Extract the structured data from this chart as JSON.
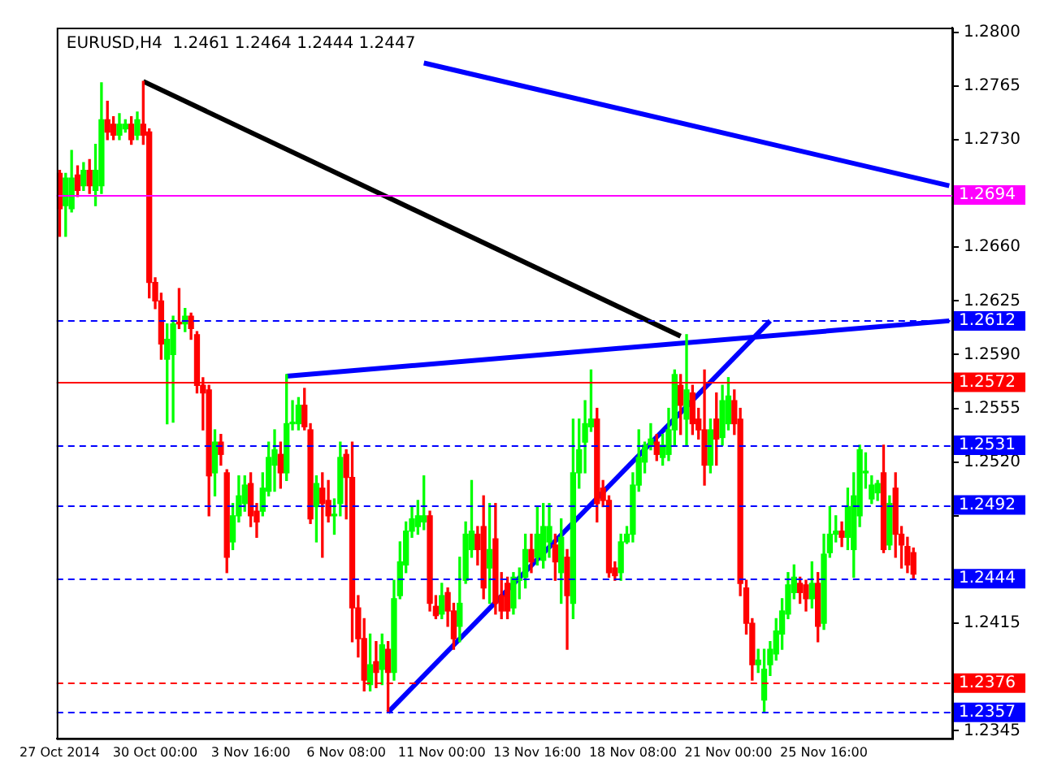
{
  "chart_data": {
    "type": "candlestick",
    "title": "EURUSD,H4  1.2461 1.2464 1.2444 1.2447",
    "categories": [
      "27 Oct 2014",
      null,
      null,
      null,
      null,
      null,
      null,
      null,
      null,
      null,
      null,
      null,
      null,
      null,
      null,
      null,
      "30 Oct 00:00",
      null,
      null,
      null,
      null,
      null,
      null,
      null,
      null,
      null,
      null,
      null,
      null,
      null,
      null,
      null,
      "3 Nov 16:00",
      null,
      null,
      null,
      null,
      null,
      null,
      null,
      null,
      null,
      null,
      null,
      null,
      null,
      null,
      null,
      "6 Nov 08:00",
      null,
      null,
      null,
      null,
      null,
      null,
      null,
      null,
      null,
      null,
      null,
      null,
      null,
      null,
      null,
      "11 Nov 00:00",
      null,
      null,
      null,
      null,
      null,
      null,
      null,
      null,
      null,
      null,
      null,
      null,
      null,
      null,
      null,
      "13 Nov 16:00",
      null,
      null,
      null,
      null,
      null,
      null,
      null,
      null,
      null,
      null,
      null,
      null,
      null,
      null,
      null,
      "18 Nov 08:00",
      null,
      null,
      null,
      null,
      null,
      null,
      null,
      null,
      null,
      null,
      null,
      null,
      null,
      null,
      null,
      "21 Nov 00:00",
      null,
      null,
      null,
      null,
      null,
      null,
      null,
      null,
      null,
      null,
      null,
      null,
      null,
      null,
      null,
      "25 Nov 16:00",
      null,
      null,
      null,
      null,
      null,
      null,
      null,
      null,
      null,
      null,
      null,
      null,
      null,
      null,
      null,
      null,
      null,
      null,
      null,
      null,
      null
    ],
    "colors": [
      "#ff0000",
      "#00ff00",
      "#00ff00",
      "#ff0000",
      "#00ff00",
      "#ff0000",
      "#00ff00",
      "#00ff00",
      "#ff0000",
      "#ff0000",
      "#00ff00",
      "#00ff00",
      "#ff0000",
      "#00ff00",
      "#ff0000",
      "#ff0000",
      "#ff0000",
      "#ff0000",
      "#00ff00",
      "#00ff00",
      "#ff0000",
      "#00ff00",
      "#ff0000",
      "#ff0000",
      "#ff0000",
      "#ff0000",
      "#00ff00",
      "#ff0000",
      "#ff0000",
      "#00ff00",
      "#00ff00",
      "#00ff00",
      "#ff0000",
      "#ff0000",
      "#00ff00",
      "#00ff00",
      "#00ff00",
      "#ff0000",
      "#00ff00",
      "#00ff00",
      "#00ff00",
      "#ff0000",
      "#ff0000",
      "#00ff00",
      "#ff0000",
      "#ff0000",
      "#00ff00",
      "#00ff00",
      "#ff0000",
      "#ff0000",
      "#ff0000",
      "#ff0000",
      "#00ff00",
      "#ff0000",
      "#00ff00",
      "#ff0000",
      "#00ff00",
      "#00ff00",
      "#00ff00",
      "#00ff00",
      "#00ff00",
      "#00ff00",
      "#ff0000",
      "#ff0000",
      "#00ff00",
      "#ff0000",
      "#ff0000",
      "#00ff00",
      "#00ff00",
      "#00ff00",
      "#ff0000",
      "#ff0000",
      "#00ff00",
      "#ff0000",
      "#ff0000",
      "#ff0000",
      "#00ff00",
      "#00ff00",
      "#00ff00",
      "#ff0000",
      "#00ff00",
      "#00ff00",
      "#00ff00",
      "#ff0000",
      "#00ff00",
      "#ff0000",
      "#00ff00",
      "#00ff00",
      "#00ff00",
      "#00ff00",
      "#ff0000",
      "#ff0000",
      "#ff0000",
      "#ff0000",
      "#00ff00",
      "#00ff00",
      "#00ff00",
      "#00ff00",
      "#00ff00",
      "#00ff00",
      "#ff0000",
      "#00ff00",
      "#00ff00",
      "#00ff00",
      "#ff0000",
      "#00ff00",
      "#ff0000",
      "#ff0000",
      "#ff0000",
      "#00ff00",
      "#ff0000",
      "#00ff00",
      "#00ff00",
      "#ff0000",
      "#ff0000",
      "#ff0000",
      "#ff0000",
      "#00ff00",
      "#00ff00",
      "#00ff00",
      "#00ff00",
      "#00ff00",
      "#00ff00",
      "#00ff00",
      "#ff0000",
      "#ff0000",
      "#00ff00",
      "#ff0000",
      "#00ff00",
      "#00ff00",
      "#00ff00",
      "#ff0000",
      "#00ff00",
      "#00ff00",
      "#00ff00",
      "#00ff00",
      "#00ff00",
      "#00ff00",
      "#ff0000",
      "#00ff00",
      "#ff0000",
      "#ff0000",
      "#ff0000",
      "#ff0000",
      null,
      null,
      null,
      null,
      null,
      null
    ],
    "ohlc": [
      [
        1.2708,
        1.271,
        1.2667,
        1.2685
      ],
      [
        1.2687,
        1.2708,
        1.2667,
        1.2705
      ],
      [
        1.2685,
        1.2723,
        1.2683,
        1.2705
      ],
      [
        1.2707,
        1.2713,
        1.2693,
        1.2697
      ],
      [
        1.27,
        1.2715,
        1.2697,
        1.271
      ],
      [
        1.271,
        1.2717,
        1.2695,
        1.27
      ],
      [
        1.2697,
        1.2727,
        1.2687,
        1.271
      ],
      [
        1.27,
        1.2767,
        1.2695,
        1.2743
      ],
      [
        1.2743,
        1.2755,
        1.273,
        1.2735
      ],
      [
        1.274,
        1.2745,
        1.273,
        1.2733
      ],
      [
        1.2733,
        1.2747,
        1.273,
        1.274
      ],
      [
        1.2737,
        1.2743,
        1.2735,
        1.274
      ],
      [
        1.274,
        1.2745,
        1.2727,
        1.273
      ],
      [
        1.2733,
        1.2748,
        1.273,
        1.2743
      ],
      [
        1.274,
        1.2768,
        1.2727,
        1.2733
      ],
      [
        1.2735,
        1.2737,
        1.2627,
        1.2637
      ],
      [
        1.2637,
        1.264,
        1.262,
        1.2625
      ],
      [
        1.2625,
        1.263,
        1.2587,
        1.2597
      ],
      [
        1.2587,
        1.261,
        1.2545,
        1.26
      ],
      [
        1.259,
        1.2615,
        1.2546,
        1.261
      ],
      [
        1.2611,
        1.2633,
        1.2607,
        1.261
      ],
      [
        1.261,
        1.262,
        1.2605,
        1.2615
      ],
      [
        1.2615,
        1.2617,
        1.26,
        1.2607
      ],
      [
        1.2603,
        1.2605,
        1.2565,
        1.257
      ],
      [
        1.257,
        1.2575,
        1.2541,
        1.2565
      ],
      [
        1.2567,
        1.257,
        1.2485,
        1.2511
      ],
      [
        1.2513,
        1.2541,
        1.2498,
        1.2533
      ],
      [
        1.2533,
        1.2538,
        1.2518,
        1.2525
      ],
      [
        1.2513,
        1.2515,
        1.2448,
        1.2458
      ],
      [
        1.2468,
        1.2493,
        1.2463,
        1.2485
      ],
      [
        1.2485,
        1.2511,
        1.2481,
        1.2498
      ],
      [
        1.2493,
        1.2511,
        1.2488,
        1.2505
      ],
      [
        1.2506,
        1.2513,
        1.2478,
        1.2485
      ],
      [
        1.2488,
        1.2493,
        1.2471,
        1.2481
      ],
      [
        1.2488,
        1.2513,
        1.2485,
        1.2503
      ],
      [
        1.2501,
        1.2533,
        1.2498,
        1.2523
      ],
      [
        1.2518,
        1.2541,
        1.2501,
        1.2528
      ],
      [
        1.2525,
        1.2533,
        1.2503,
        1.2513
      ],
      [
        1.2513,
        1.2577,
        1.2508,
        1.2545
      ],
      [
        1.2545,
        1.256,
        1.2541,
        1.2546
      ],
      [
        1.2545,
        1.2562,
        1.2541,
        1.2557
      ],
      [
        1.2557,
        1.2568,
        1.2541,
        1.2543
      ],
      [
        1.2541,
        1.2545,
        1.248,
        1.2483
      ],
      [
        1.2491,
        1.2511,
        1.2468,
        1.2506
      ],
      [
        1.2503,
        1.2513,
        1.2458,
        1.2493
      ],
      [
        1.2495,
        1.2508,
        1.2481,
        1.2485
      ],
      [
        1.2485,
        1.2496,
        1.2473,
        1.2486
      ],
      [
        1.2493,
        1.2533,
        1.2485,
        1.2523
      ],
      [
        1.2525,
        1.2528,
        1.2483,
        1.251
      ],
      [
        1.251,
        1.2533,
        1.2403,
        1.2425
      ],
      [
        1.2425,
        1.2433,
        1.2393,
        1.2405
      ],
      [
        1.2405,
        1.2418,
        1.2371,
        1.2378
      ],
      [
        1.2375,
        1.2408,
        1.2371,
        1.2388
      ],
      [
        1.239,
        1.2403,
        1.2373,
        1.2383
      ],
      [
        1.2385,
        1.2408,
        1.2375,
        1.2401
      ],
      [
        1.2398,
        1.2403,
        1.2357,
        1.2383
      ],
      [
        1.2383,
        1.2443,
        1.2378,
        1.2431
      ],
      [
        1.2433,
        1.2468,
        1.2431,
        1.2455
      ],
      [
        1.2453,
        1.2481,
        1.2448,
        1.2475
      ],
      [
        1.2475,
        1.2491,
        1.2471,
        1.2483
      ],
      [
        1.2478,
        1.2495,
        1.2473,
        1.2485
      ],
      [
        1.2481,
        1.2511,
        1.2476,
        1.2485
      ],
      [
        1.2485,
        1.2488,
        1.2423,
        1.2428
      ],
      [
        1.2426,
        1.2433,
        1.2418,
        1.242
      ],
      [
        1.2421,
        1.2441,
        1.2418,
        1.2433
      ],
      [
        1.2435,
        1.2438,
        1.2413,
        1.2423
      ],
      [
        1.2423,
        1.2428,
        1.2398,
        1.2405
      ],
      [
        1.2413,
        1.2458,
        1.2403,
        1.2428
      ],
      [
        1.2443,
        1.2481,
        1.2441,
        1.2473
      ],
      [
        1.2463,
        1.2508,
        1.2458,
        1.2475
      ],
      [
        1.2473,
        1.2478,
        1.2453,
        1.2463
      ],
      [
        1.2478,
        1.2498,
        1.2431,
        1.2438
      ],
      [
        1.2451,
        1.2493,
        1.2428,
        1.2463
      ],
      [
        1.247,
        1.2493,
        1.2421,
        1.2428
      ],
      [
        1.2433,
        1.2448,
        1.2418,
        1.2423
      ],
      [
        1.2441,
        1.2445,
        1.2418,
        1.2423
      ],
      [
        1.2425,
        1.2448,
        1.2421,
        1.2445
      ],
      [
        1.2443,
        1.2451,
        1.2431,
        1.2444
      ],
      [
        1.2445,
        1.2473,
        1.2438,
        1.2463
      ],
      [
        1.2463,
        1.2473,
        1.2448,
        1.2455
      ],
      [
        1.2458,
        1.2491,
        1.2453,
        1.2473
      ],
      [
        1.2456,
        1.2493,
        1.2451,
        1.2478
      ],
      [
        1.2468,
        1.2493,
        1.2458,
        1.2478
      ],
      [
        1.2466,
        1.2473,
        1.2443,
        1.2455
      ],
      [
        1.2448,
        1.2483,
        1.2428,
        1.2471
      ],
      [
        1.2458,
        1.2463,
        1.2398,
        1.2433
      ],
      [
        1.2428,
        1.2548,
        1.2418,
        1.2513
      ],
      [
        1.2513,
        1.2548,
        1.2503,
        1.2528
      ],
      [
        1.2533,
        1.256,
        1.2513,
        1.2545
      ],
      [
        1.2543,
        1.258,
        1.254,
        1.2548
      ],
      [
        1.2548,
        1.2555,
        1.2481,
        1.2493
      ],
      [
        1.2503,
        1.2508,
        1.2491,
        1.2495
      ],
      [
        1.2495,
        1.2498,
        1.2445,
        1.2448
      ],
      [
        1.2451,
        1.2455,
        1.2443,
        1.2446
      ],
      [
        1.2448,
        1.2473,
        1.2443,
        1.2468
      ],
      [
        1.2468,
        1.2478,
        1.2467,
        1.2473
      ],
      [
        1.2473,
        1.2513,
        1.2468,
        1.2505
      ],
      [
        1.2505,
        1.2541,
        1.2501,
        1.2523
      ],
      [
        1.252,
        1.2533,
        1.2513,
        1.2531
      ],
      [
        1.2531,
        1.2545,
        1.2528,
        1.2535
      ],
      [
        1.2533,
        1.2538,
        1.2521,
        1.2525
      ],
      [
        1.2523,
        1.2538,
        1.2518,
        1.2531
      ],
      [
        1.2525,
        1.2555,
        1.2521,
        1.2541
      ],
      [
        1.2541,
        1.258,
        1.2531,
        1.2577
      ],
      [
        1.257,
        1.2577,
        1.2538,
        1.2557
      ],
      [
        1.2548,
        1.2603,
        1.2531,
        1.2567
      ],
      [
        1.2565,
        1.257,
        1.2538,
        1.2545
      ],
      [
        1.2548,
        1.2555,
        1.2535,
        1.2541
      ],
      [
        1.2541,
        1.258,
        1.2505,
        1.2518
      ],
      [
        1.2518,
        1.2548,
        1.2513,
        1.2541
      ],
      [
        1.2548,
        1.2565,
        1.2518,
        1.2535
      ],
      [
        1.2536,
        1.257,
        1.2531,
        1.256
      ],
      [
        1.2545,
        1.2575,
        1.2541,
        1.2563
      ],
      [
        1.256,
        1.2567,
        1.2538,
        1.2545
      ],
      [
        1.2548,
        1.2555,
        1.2433,
        1.2441
      ],
      [
        1.2438,
        1.2443,
        1.2408,
        1.2415
      ],
      [
        1.2415,
        1.2418,
        1.2378,
        1.2388
      ],
      [
        1.2388,
        1.2398,
        1.2383,
        1.2391
      ],
      [
        1.2365,
        1.2398,
        1.2357,
        1.2385
      ],
      [
        1.2388,
        1.2403,
        1.2381,
        1.2398
      ],
      [
        1.2395,
        1.2418,
        1.2391,
        1.241
      ],
      [
        1.2408,
        1.2431,
        1.2398,
        1.2423
      ],
      [
        1.2421,
        1.2448,
        1.2418,
        1.244
      ],
      [
        1.2435,
        1.2453,
        1.2431,
        1.2445
      ],
      [
        1.2441,
        1.2445,
        1.2428,
        1.2435
      ],
      [
        1.244,
        1.2443,
        1.2423,
        1.2431
      ],
      [
        1.2431,
        1.2455,
        1.2425,
        1.2441
      ],
      [
        1.2441,
        1.2448,
        1.2403,
        1.2413
      ],
      [
        1.2415,
        1.2473,
        1.2411,
        1.246
      ],
      [
        1.2461,
        1.2491,
        1.2458,
        1.2473
      ],
      [
        1.2473,
        1.2485,
        1.2468,
        1.2475
      ],
      [
        1.2475,
        1.2481,
        1.2465,
        1.2471
      ],
      [
        1.2471,
        1.2503,
        1.2463,
        1.2491
      ],
      [
        1.2463,
        1.2513,
        1.2445,
        1.2498
      ],
      [
        1.2485,
        1.2531,
        1.2478,
        1.2528
      ],
      [
        1.2513,
        1.2526,
        1.2503,
        1.2514
      ],
      [
        1.2496,
        1.2511,
        1.2493,
        1.2505
      ],
      [
        1.25,
        1.2508,
        1.2495,
        1.2506
      ],
      [
        1.2513,
        1.2531,
        1.2461,
        1.2463
      ],
      [
        1.2466,
        1.2498,
        1.2463,
        1.2493
      ],
      [
        1.2503,
        1.2513,
        1.2458,
        1.2473
      ],
      [
        1.2473,
        1.2478,
        1.2451,
        1.2466
      ],
      [
        1.2465,
        1.2471,
        1.2448,
        1.2453
      ],
      [
        1.2461,
        1.2464,
        1.2444,
        1.2447
      ],
      null,
      null,
      null,
      null,
      null,
      null
    ],
    "series": [
      {
        "type": "line",
        "color": "#000000",
        "values": [
          null,
          null,
          null,
          null,
          null,
          null,
          null,
          null,
          null,
          null,
          null,
          null,
          null,
          null,
          1.2768,
          null,
          null,
          null,
          null,
          null,
          null,
          null,
          null,
          null,
          null,
          null,
          null,
          null,
          null,
          null,
          null,
          null,
          null,
          null,
          null,
          null,
          null,
          null,
          null,
          null,
          null,
          null,
          null,
          null,
          null,
          null,
          null,
          null,
          null,
          null,
          null,
          null,
          null,
          null,
          null,
          null,
          null,
          null,
          null,
          null,
          null,
          null,
          null,
          null,
          null,
          null,
          null,
          null,
          null,
          null,
          null,
          null,
          null,
          null,
          null,
          null,
          null,
          null,
          null,
          null,
          null,
          null,
          null,
          null,
          null,
          null,
          null,
          null,
          null,
          null,
          null,
          null,
          null,
          null,
          null,
          null,
          null,
          null,
          null,
          null,
          null,
          null,
          null,
          null,
          1.2602,
          null,
          null,
          null,
          null,
          null,
          null,
          null,
          null,
          null,
          null,
          null,
          null,
          null,
          null,
          null,
          null,
          null,
          null,
          null,
          null,
          null,
          null,
          null,
          null,
          null,
          null,
          null,
          null,
          null,
          null,
          null,
          null,
          null,
          null,
          null,
          null,
          null,
          null,
          null,
          null,
          null,
          null,
          null,
          null,
          null
        ]
      },
      {
        "type": "line",
        "color": "#0000ff",
        "values": [
          null,
          null,
          null,
          null,
          null,
          null,
          null,
          null,
          null,
          null,
          null,
          null,
          null,
          null,
          null,
          null,
          null,
          null,
          null,
          null,
          null,
          null,
          null,
          null,
          null,
          null,
          null,
          null,
          null,
          null,
          null,
          null,
          null,
          null,
          null,
          null,
          null,
          null,
          null,
          null,
          null,
          null,
          null,
          null,
          null,
          null,
          null,
          null,
          null,
          null,
          null,
          null,
          null,
          null,
          null,
          null,
          null,
          null,
          null,
          null,
          null,
          1.278,
          null,
          null,
          null,
          null,
          null,
          null,
          null,
          null,
          null,
          null,
          null,
          null,
          null,
          null,
          null,
          null,
          null,
          null,
          null,
          null,
          null,
          null,
          null,
          null,
          null,
          null,
          null,
          null,
          null,
          null,
          null,
          null,
          null,
          null,
          null,
          null,
          null,
          null,
          null,
          null,
          null,
          null,
          null,
          null,
          null,
          null,
          null,
          null,
          null,
          null,
          null,
          null,
          null,
          null,
          null,
          null,
          null,
          null,
          null,
          null,
          null,
          null,
          null,
          null,
          null,
          null,
          null,
          null,
          null,
          null,
          null,
          null,
          null,
          null,
          null,
          null,
          null,
          null,
          null,
          null,
          null,
          null,
          null,
          null,
          null,
          null,
          null,
          1.27
        ]
      },
      {
        "type": "line",
        "color": "#0000ff",
        "values": [
          null,
          null,
          null,
          null,
          null,
          null,
          null,
          null,
          null,
          null,
          null,
          null,
          null,
          null,
          null,
          null,
          null,
          null,
          null,
          null,
          null,
          null,
          null,
          null,
          null,
          null,
          null,
          null,
          null,
          null,
          null,
          null,
          null,
          null,
          null,
          null,
          null,
          null,
          1.2576,
          null,
          null,
          null,
          null,
          null,
          null,
          null,
          null,
          null,
          null,
          null,
          null,
          null,
          null,
          null,
          null,
          null,
          null,
          null,
          null,
          null,
          null,
          null,
          null,
          null,
          null,
          null,
          null,
          null,
          null,
          null,
          null,
          null,
          null,
          null,
          null,
          null,
          null,
          null,
          null,
          null,
          null,
          null,
          null,
          null,
          null,
          null,
          null,
          null,
          null,
          null,
          null,
          null,
          null,
          null,
          null,
          null,
          null,
          null,
          null,
          null,
          null,
          null,
          null,
          null,
          null,
          null,
          null,
          null,
          null,
          null,
          null,
          null,
          null,
          null,
          null,
          null,
          null,
          null,
          null,
          null,
          null,
          null,
          null,
          null,
          null,
          null,
          null,
          null,
          null,
          null,
          null,
          null,
          null,
          null,
          null,
          null,
          null,
          null,
          null,
          null,
          null,
          null,
          null,
          null,
          null,
          null,
          null,
          null,
          null,
          1.2612
        ]
      },
      {
        "type": "line",
        "color": "#0000ff",
        "values": [
          null,
          null,
          null,
          null,
          null,
          null,
          null,
          null,
          null,
          null,
          null,
          null,
          null,
          null,
          null,
          null,
          null,
          null,
          null,
          null,
          null,
          null,
          null,
          null,
          null,
          null,
          null,
          null,
          null,
          null,
          null,
          null,
          null,
          null,
          null,
          null,
          null,
          null,
          null,
          null,
          null,
          null,
          null,
          null,
          null,
          null,
          null,
          null,
          null,
          null,
          null,
          null,
          null,
          null,
          null,
          1.2357,
          null,
          null,
          null,
          null,
          null,
          null,
          null,
          null,
          null,
          null,
          null,
          null,
          null,
          null,
          null,
          null,
          null,
          null,
          null,
          null,
          null,
          null,
          null,
          null,
          null,
          null,
          null,
          null,
          null,
          null,
          null,
          null,
          null,
          null,
          null,
          null,
          null,
          null,
          null,
          null,
          null,
          null,
          null,
          null,
          null,
          null,
          null,
          null,
          null,
          null,
          null,
          null,
          null,
          null,
          null,
          null,
          null,
          null,
          null,
          null,
          null,
          null,
          null,
          1.2612,
          null,
          null,
          null,
          null,
          null,
          null,
          null,
          null,
          null,
          null,
          null,
          null,
          null,
          null,
          null,
          null,
          null,
          null,
          null,
          null,
          null,
          null,
          null,
          null,
          null,
          null,
          null,
          null,
          null,
          null
        ]
      }
    ],
    "ylim": [
      1.234,
      1.2803
    ],
    "yticks": [
      {
        "value": 1.28,
        "label": "1.2800"
      },
      1.2765,
      {
        "value": 1.273,
        "label": "1.2730"
      },
      {
        "value": 1.266,
        "label": "1.2660"
      },
      1.2625,
      {
        "value": 1.259,
        "label": "1.2590"
      },
      1.2555,
      {
        "value": 1.252,
        "label": "1.2520"
      },
      {
        "value": 1.2485,
        "label": null
      },
      1.2415,
      1.2345
    ],
    "ref_lines": [
      {
        "axis": "y",
        "value": 1.2694,
        "label": "1.2694",
        "color": "#ff00ff",
        "line_style": "solid"
      },
      {
        "axis": "y",
        "value": 1.2612,
        "label": "1.2612",
        "color": "#0000ff",
        "line_style": "dashed"
      },
      {
        "axis": "y",
        "value": 1.2572,
        "label": "1.2572",
        "color": "#ff0000",
        "line_style": "solid"
      },
      {
        "axis": "y",
        "value": 1.2531,
        "label": "1.2531",
        "color": "#0000ff",
        "line_style": "dashed"
      },
      {
        "axis": "y",
        "value": 1.2492,
        "label": "1.2492",
        "color": "#0000ff",
        "line_style": "dashed"
      },
      {
        "axis": "y",
        "value": 1.2444,
        "label": "1.2444",
        "color": "#0000ff",
        "line_style": "dashed"
      },
      {
        "axis": "y",
        "value": 1.2376,
        "label": "1.2376",
        "color": "#ff0000",
        "line_style": "dashed"
      },
      {
        "axis": "y",
        "value": 1.2357,
        "label": "1.2357",
        "color": "#0000ff",
        "line_style": "dashed"
      }
    ]
  }
}
